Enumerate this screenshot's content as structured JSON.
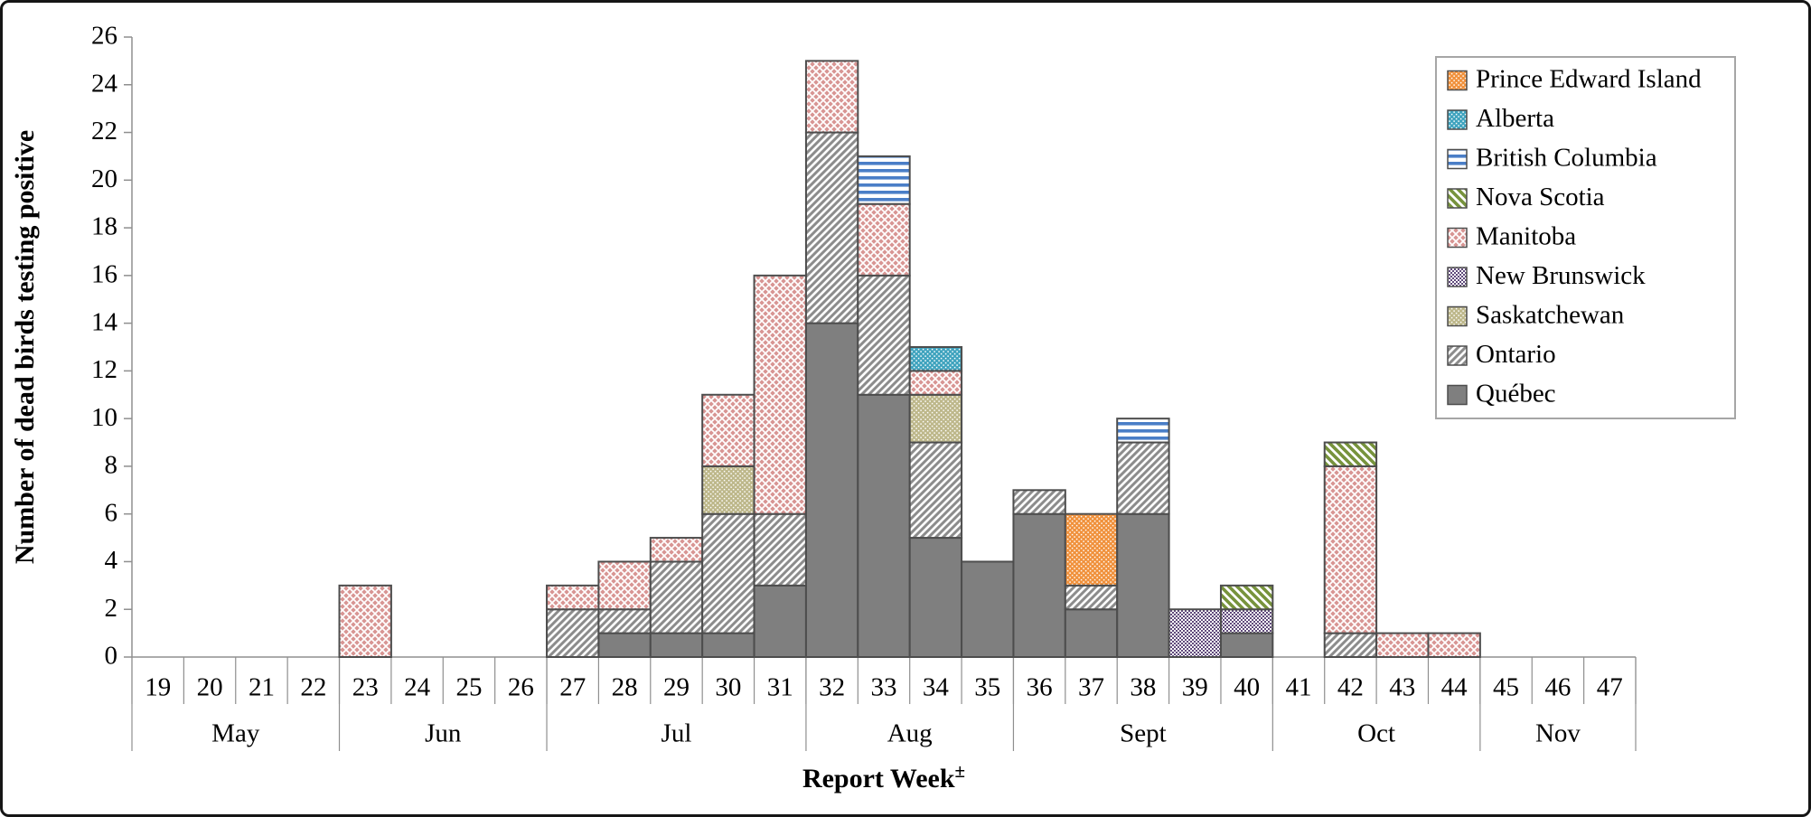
{
  "figure": {
    "border_color": "#151515",
    "background": "#ffffff"
  },
  "chart_data": {
    "type": "bar",
    "subtype": "stacked",
    "title": "",
    "ylabel": "Number of dead birds testing positive",
    "xlabel": {
      "text": "Report Week",
      "superscript": "±"
    },
    "ylim": [
      0,
      26
    ],
    "ytick_step": 2,
    "grid": false,
    "axis_color": "#8f8f8f",
    "bar_border_color": "#4d4d4d",
    "weeks": [
      "19",
      "20",
      "21",
      "22",
      "23",
      "24",
      "25",
      "26",
      "27",
      "28",
      "29",
      "30",
      "31",
      "32",
      "33",
      "34",
      "35",
      "36",
      "37",
      "38",
      "39",
      "40",
      "41",
      "42",
      "43",
      "44",
      "45",
      "46",
      "47"
    ],
    "months": [
      {
        "label": "May",
        "start": 19,
        "end": 22
      },
      {
        "label": "Jun",
        "start": 23,
        "end": 26
      },
      {
        "label": "Jul",
        "start": 27,
        "end": 31
      },
      {
        "label": "Aug",
        "start": 32,
        "end": 35
      },
      {
        "label": "Sept",
        "start": 36,
        "end": 40
      },
      {
        "label": "Oct",
        "start": 41,
        "end": 44
      },
      {
        "label": "Nov",
        "start": 45,
        "end": 47
      }
    ],
    "legend": {
      "position": "top-right-inside",
      "border_color": "#a6a6a6",
      "background": "#ffffff"
    },
    "stack_order_note": "bottom-to-top stacking is the reverse of legend order (Québec at bottom, Prince Edward Island at top)",
    "series": [
      {
        "name": "Prince Edward Island",
        "pattern": "dots",
        "color": "#F0913C",
        "data": {
          "37": 3
        }
      },
      {
        "name": "Alberta",
        "pattern": "dots",
        "color": "#3FA3BE",
        "data": {
          "34": 1
        }
      },
      {
        "name": "British Columbia",
        "pattern": "hstripes",
        "color": "#4A7EC7",
        "data": {
          "33": 2,
          "38": 1
        }
      },
      {
        "name": "Nova Scotia",
        "pattern": "diag-down",
        "color": "#77933C",
        "data": {
          "40": 1,
          "42": 1
        }
      },
      {
        "name": "Manitoba",
        "pattern": "crosshatch",
        "color": "#D89593",
        "data": {
          "23": 3,
          "27": 1,
          "28": 2,
          "29": 1,
          "30": 3,
          "31": 10,
          "32": 3,
          "33": 3,
          "34": 1,
          "42": 7,
          "43": 1,
          "44": 1
        }
      },
      {
        "name": "New Brunswick",
        "pattern": "checker",
        "color": "#604A7B",
        "data": {
          "39": 2,
          "40": 1
        }
      },
      {
        "name": "Saskatchewan",
        "pattern": "dots",
        "color": "#BDB78A",
        "data": {
          "30": 2,
          "34": 2
        }
      },
      {
        "name": "Ontario",
        "pattern": "diag-up",
        "color": "#8C8C8C",
        "data": {
          "27": 2,
          "28": 1,
          "29": 3,
          "30": 5,
          "31": 3,
          "32": 8,
          "33": 5,
          "34": 4,
          "36": 1,
          "37": 1,
          "38": 3,
          "42": 1
        }
      },
      {
        "name": "Québec",
        "pattern": "solid",
        "color": "#7F7F7F",
        "data": {
          "28": 1,
          "29": 1,
          "30": 1,
          "31": 3,
          "32": 14,
          "33": 11,
          "34": 5,
          "35": 4,
          "36": 6,
          "37": 2,
          "38": 6,
          "40": 1
        }
      }
    ],
    "weekly_totals": {
      "23": 3,
      "27": 3,
      "28": 4,
      "29": 5,
      "30": 11,
      "31": 16,
      "32": 25,
      "33": 21,
      "34": 13,
      "35": 4,
      "36": 7,
      "37": 6,
      "38": 10,
      "39": 2,
      "40": 3,
      "42": 9,
      "43": 1,
      "44": 1
    }
  }
}
